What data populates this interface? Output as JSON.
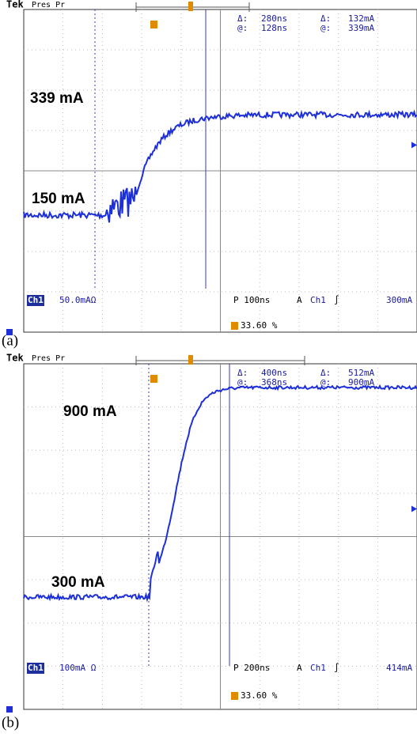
{
  "panels": [
    {
      "header": {
        "brand": "Tek",
        "mode": "Pres Pr"
      },
      "readout": [
        [
          "Δ:",
          "280ns",
          "Δ:",
          "132mA"
        ],
        [
          "@:",
          "128ns",
          "@:",
          "339mA"
        ]
      ],
      "annotations": [
        "339 mA",
        "150 mA"
      ],
      "status": {
        "channel": "Ch1",
        "scale": "50.0mAΩ",
        "timebase": "P 100ns",
        "trigger_mode": "A",
        "trigger_channel": "Ch1",
        "trigger_slope": "∫",
        "trigger_level": "300mA",
        "trigger_position": "33.60 %"
      },
      "caption": "(a)"
    },
    {
      "header": {
        "brand": "Tek",
        "mode": "Pres Pr"
      },
      "readout": [
        [
          "Δ:",
          "400ns",
          "Δ:",
          "512mA"
        ],
        [
          "@:",
          "368ns",
          "@:",
          "900mA"
        ]
      ],
      "annotations": [
        "900 mA",
        "300 mA"
      ],
      "status": {
        "channel": "Ch1",
        "scale": "100mA Ω",
        "timebase": "P 200ns",
        "trigger_mode": "A",
        "trigger_channel": "Ch1",
        "trigger_slope": "∫",
        "trigger_level": "414mA",
        "trigger_position": "33.60 %"
      },
      "caption": "(b)"
    }
  ]
}
